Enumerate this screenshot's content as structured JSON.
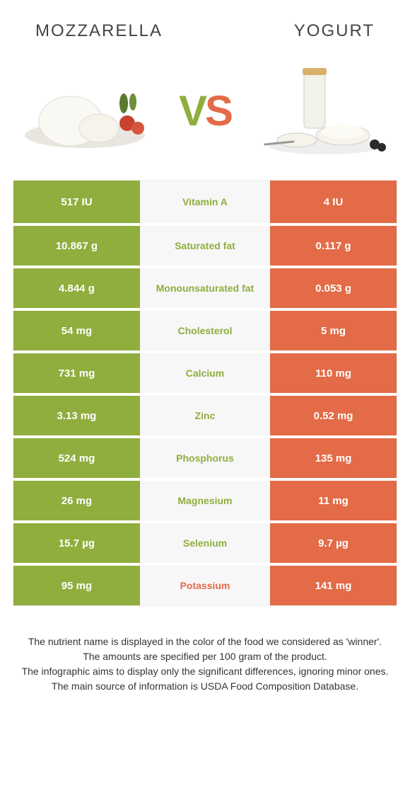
{
  "header": {
    "left_title": "Mozzarella",
    "right_title": "Yogurt"
  },
  "vs": {
    "v": "V",
    "s": "S"
  },
  "colors": {
    "green": "#8fae3e",
    "orange": "#e36b47",
    "mid_bg": "#f7f7f7"
  },
  "rows": [
    {
      "left": "517 IU",
      "mid": "Vitamin A",
      "right": "4 IU",
      "winner": "left"
    },
    {
      "left": "10.867 g",
      "mid": "Saturated fat",
      "right": "0.117 g",
      "winner": "left"
    },
    {
      "left": "4.844 g",
      "mid": "Monounsaturated fat",
      "right": "0.053 g",
      "winner": "left"
    },
    {
      "left": "54 mg",
      "mid": "Cholesterol",
      "right": "5 mg",
      "winner": "left"
    },
    {
      "left": "731 mg",
      "mid": "Calcium",
      "right": "110 mg",
      "winner": "left"
    },
    {
      "left": "3.13 mg",
      "mid": "Zinc",
      "right": "0.52 mg",
      "winner": "left"
    },
    {
      "left": "524 mg",
      "mid": "Phosphorus",
      "right": "135 mg",
      "winner": "left"
    },
    {
      "left": "26 mg",
      "mid": "Magnesium",
      "right": "11 mg",
      "winner": "left"
    },
    {
      "left": "15.7 µg",
      "mid": "Selenium",
      "right": "9.7 µg",
      "winner": "left"
    },
    {
      "left": "95 mg",
      "mid": "Potassium",
      "right": "141 mg",
      "winner": "right"
    }
  ],
  "footer": {
    "line1": "The nutrient name is displayed in the color of the food we considered as 'winner'.",
    "line2": "The amounts are specified per 100 gram of the product.",
    "line3": "The infographic aims to display only the significant differences, ignoring minor ones.",
    "line4": "The main source of information is USDA Food Composition Database."
  }
}
